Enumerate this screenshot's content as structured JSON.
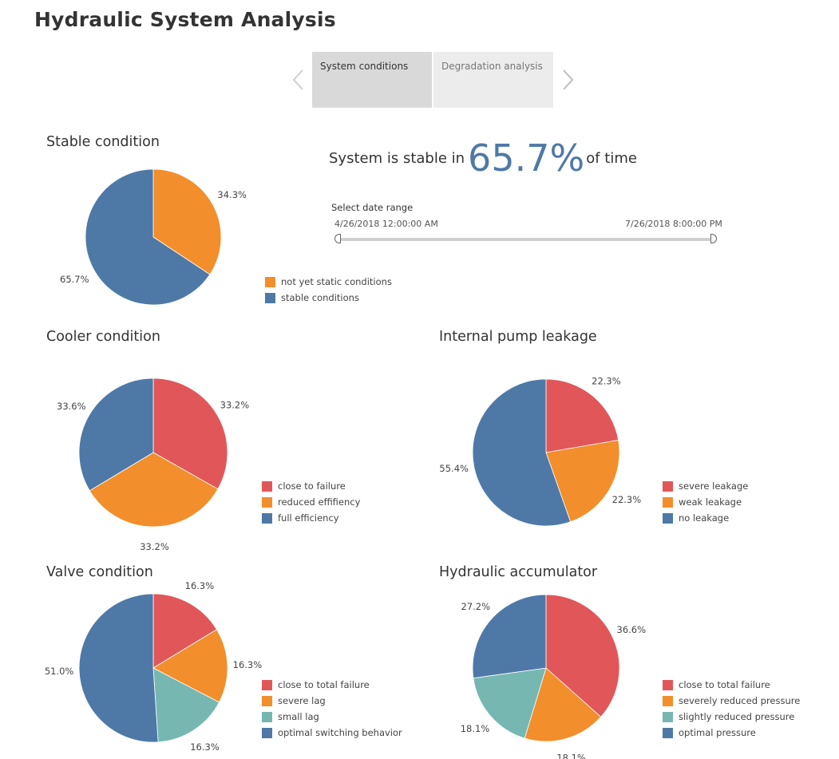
{
  "title": "Hydraulic System Analysis",
  "tabs": [
    {
      "label": "System conditions",
      "active": true
    },
    {
      "label": "Degradation analysis",
      "active": false
    }
  ],
  "summary": {
    "prefix": "System is stable in",
    "value": "65.7%",
    "suffix": "of time"
  },
  "date_range": {
    "label": "Select date range",
    "start": "4/26/2018 12:00:00 AM",
    "end": "7/26/2018 8:00:00 PM"
  },
  "colors": {
    "red": "#e15759",
    "orange": "#f28e2b",
    "teal": "#76b7b2",
    "blue": "#4e79a7",
    "accent": "#4e79a7"
  },
  "icons": [
    "chevron-left-icon",
    "chevron-right-icon"
  ],
  "chart_data": [
    {
      "type": "pie",
      "title": "Stable condition",
      "categories": [
        "not yet static conditions",
        "stable conditions"
      ],
      "values": [
        34.3,
        65.7
      ],
      "labels": [
        "34.3%",
        "65.7%"
      ],
      "colors": [
        "#f28e2b",
        "#4e79a7"
      ]
    },
    {
      "type": "pie",
      "title": "Cooler condition",
      "categories": [
        "close to failure",
        "reduced effifiency",
        "full efficiency"
      ],
      "values": [
        33.2,
        33.2,
        33.6
      ],
      "labels": [
        "33.2%",
        "33.2%",
        "33.6%"
      ],
      "colors": [
        "#e15759",
        "#f28e2b",
        "#4e79a7"
      ]
    },
    {
      "type": "pie",
      "title": "Internal pump leakage",
      "categories": [
        "severe leakage",
        "weak leakage",
        "no leakage"
      ],
      "values": [
        22.3,
        22.3,
        55.4
      ],
      "labels": [
        "22.3%",
        "22.3%",
        "55.4%"
      ],
      "colors": [
        "#e15759",
        "#f28e2b",
        "#4e79a7"
      ]
    },
    {
      "type": "pie",
      "title": "Valve condition",
      "categories": [
        "close to total failure",
        "severe lag",
        "small lag",
        "optimal switching behavior"
      ],
      "values": [
        16.3,
        16.3,
        16.3,
        51.0
      ],
      "labels": [
        "16.3%",
        "16.3%",
        "16.3%",
        "51.0%"
      ],
      "colors": [
        "#e15759",
        "#f28e2b",
        "#76b7b2",
        "#4e79a7"
      ]
    },
    {
      "type": "pie",
      "title": "Hydraulic accumulator",
      "categories": [
        "close to total failure",
        "severely reduced pressure",
        "slightly reduced pressure",
        "optimal pressure"
      ],
      "values": [
        36.6,
        18.1,
        18.1,
        27.2
      ],
      "labels": [
        "36.6%",
        "18.1%",
        "18.1%",
        "27.2%"
      ],
      "colors": [
        "#e15759",
        "#f28e2b",
        "#76b7b2",
        "#4e79a7"
      ]
    }
  ]
}
